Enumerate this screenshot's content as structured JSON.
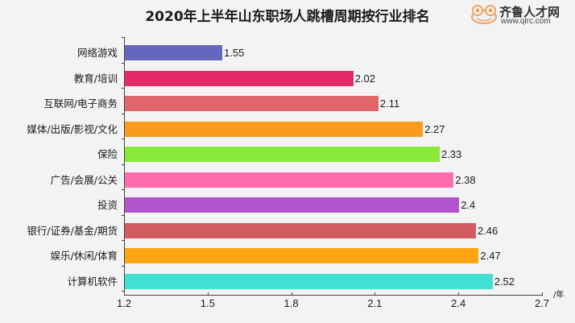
{
  "chart_data": {
    "type": "bar",
    "orientation": "horizontal",
    "title": "2020年上半年山东职场人跳槽周期按行业排名",
    "xlabel": "",
    "x_unit": "/年",
    "ylabel": "",
    "xlim": [
      1.2,
      2.7
    ],
    "xticks": [
      "1.2",
      "1.5",
      "1.8",
      "2.1",
      "2.4",
      "2.7"
    ],
    "grid": false,
    "legend": null,
    "categories": [
      "网络游戏",
      "教育/培训",
      "互联网/电子商务",
      "媒体/出版/影视/文化",
      "保险",
      "广告/会展/公关",
      "投资",
      "银行/证券/基金/期货",
      "娱乐/休闲/体育",
      "计算机软件"
    ],
    "values": [
      1.55,
      2.02,
      2.11,
      2.27,
      2.33,
      2.38,
      2.4,
      2.46,
      2.47,
      2.52
    ],
    "value_labels": [
      "1.55",
      "2.02",
      "2.11",
      "2.27",
      "2.33",
      "2.38",
      "2.4",
      "2.46",
      "2.47",
      "2.52"
    ],
    "colors": [
      "#6466c0",
      "#e4286a",
      "#e0666a",
      "#fa9a1e",
      "#8ae83a",
      "#fc6cae",
      "#b154cc",
      "#d35c60",
      "#fca412",
      "#42e0d2"
    ]
  },
  "logo": {
    "brand": "齐鲁人才网",
    "url": "www.qlrc.com"
  }
}
